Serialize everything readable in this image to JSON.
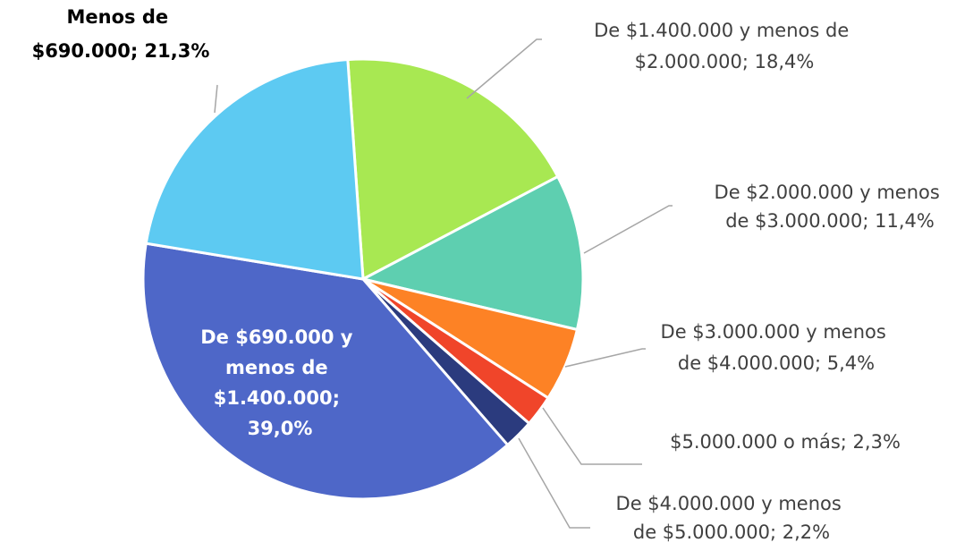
{
  "chart_data": {
    "type": "pie",
    "values": [
      18.4,
      11.4,
      5.4,
      2.3,
      2.2,
      39.0,
      21.3
    ],
    "value_labels": [
      "De $1.400.000 y menos de $2.000.000; 18,4%",
      "De $2.000.000 y menos de $3.000.000; 11,4%",
      "De $3.000.000 y menos de $4.000.000; 5,4%",
      "$5.000.000 o más; 2,3%",
      "De $4.000.000 y menos de $5.000.000; 2,2%",
      "De $690.000 y menos de $1.400.000; 39,0%",
      "Menos de $690.000; 21,3%"
    ],
    "colors": [
      "#a8e852",
      "#5ecfb0",
      "#fd8225",
      "#f0452a",
      "#2b3b7e",
      "#4e67c8",
      "#5dcaf2"
    ]
  }
}
